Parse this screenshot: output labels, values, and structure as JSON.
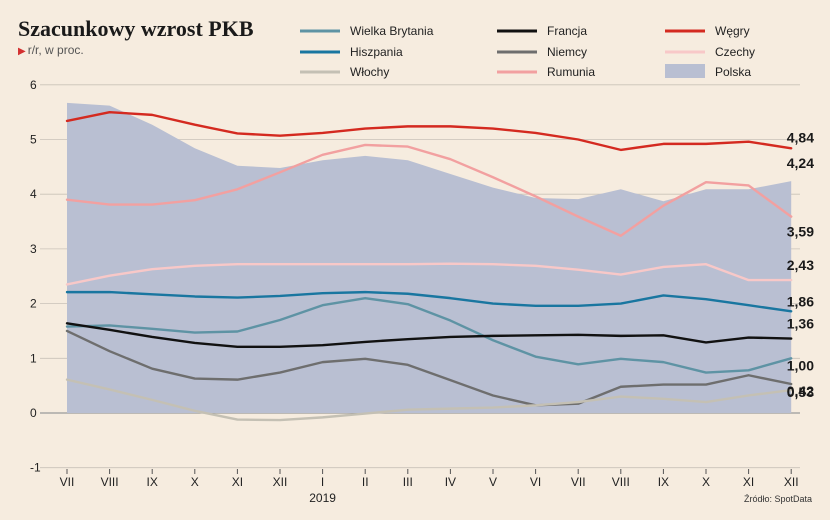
{
  "title": "Szacunkowy wzrost PKB",
  "subtitle": "r/r, w proc.",
  "source": "Źródło: SpotData",
  "chart_data": {
    "type": "line",
    "categories": [
      "VII",
      "VIII",
      "IX",
      "X",
      "XI",
      "XII",
      "I",
      "II",
      "III",
      "IV",
      "V",
      "VI",
      "VII",
      "VIII",
      "IX",
      "X",
      "XI",
      "XII"
    ],
    "year_label": "2019",
    "year_label_index": 6,
    "ylim": [
      -1,
      6
    ],
    "yticks": [
      -1,
      0,
      1,
      2,
      3,
      4,
      5,
      6
    ],
    "area_series": {
      "name": "Polska",
      "color": "#b9bfd2",
      "values": [
        5.67,
        5.62,
        5.27,
        4.84,
        4.52,
        4.48,
        4.62,
        4.7,
        4.62,
        4.37,
        4.12,
        3.93,
        3.91,
        4.09,
        3.87,
        4.09,
        4.09,
        4.24
      ]
    },
    "series": [
      {
        "name": "Węgry",
        "color": "#d42a20",
        "values": [
          5.34,
          5.5,
          5.45,
          5.27,
          5.11,
          5.07,
          5.12,
          5.2,
          5.24,
          5.24,
          5.2,
          5.12,
          5.0,
          4.81,
          4.92,
          4.92,
          4.96,
          4.84
        ]
      },
      {
        "name": "Rumunia",
        "color": "#f2a0a0",
        "values": [
          3.9,
          3.81,
          3.81,
          3.89,
          4.09,
          4.4,
          4.72,
          4.9,
          4.87,
          4.64,
          4.31,
          3.96,
          3.59,
          3.24,
          3.79,
          4.22,
          4.16,
          3.59
        ]
      },
      {
        "name": "Czechy",
        "color": "#f8c8c8",
        "values": [
          2.35,
          2.51,
          2.63,
          2.69,
          2.72,
          2.72,
          2.72,
          2.72,
          2.72,
          2.73,
          2.72,
          2.69,
          2.62,
          2.53,
          2.67,
          2.72,
          2.43,
          2.43
        ]
      },
      {
        "name": "Hiszpania",
        "color": "#1976a0",
        "values": [
          2.21,
          2.21,
          2.17,
          2.13,
          2.11,
          2.14,
          2.19,
          2.21,
          2.18,
          2.1,
          2.0,
          1.96,
          1.96,
          2.0,
          2.15,
          2.08,
          1.97,
          1.86
        ]
      },
      {
        "name": "Wielka Brytania",
        "color": "#5e93a4",
        "values": [
          1.58,
          1.6,
          1.54,
          1.47,
          1.49,
          1.7,
          1.97,
          2.1,
          1.99,
          1.69,
          1.33,
          1.03,
          0.89,
          0.99,
          0.93,
          0.74,
          0.78,
          1.0
        ]
      },
      {
        "name": "Francja",
        "color": "#111111",
        "values": [
          1.64,
          1.52,
          1.39,
          1.28,
          1.21,
          1.21,
          1.24,
          1.3,
          1.35,
          1.39,
          1.41,
          1.42,
          1.43,
          1.41,
          1.42,
          1.29,
          1.38,
          1.36
        ]
      },
      {
        "name": "Niemcy",
        "color": "#6e6e6e",
        "values": [
          1.5,
          1.13,
          0.81,
          0.63,
          0.61,
          0.74,
          0.93,
          0.99,
          0.88,
          0.6,
          0.32,
          0.14,
          0.17,
          0.48,
          0.52,
          0.52,
          0.69,
          0.53
        ]
      },
      {
        "name": "Włochy",
        "color": "#c4c0b4",
        "values": [
          0.61,
          0.43,
          0.24,
          0.04,
          -0.12,
          -0.13,
          -0.08,
          -0.01,
          0.06,
          0.08,
          0.1,
          0.14,
          0.2,
          0.3,
          0.26,
          0.2,
          0.32,
          0.42
        ]
      }
    ],
    "end_labels": [
      "4,84",
      "4,24",
      "3,59",
      "2,43",
      "1,86",
      "1,36",
      "1,00",
      "0,53",
      "0,42"
    ],
    "legend": [
      {
        "name": "Wielka Brytania",
        "color": "#5e93a4",
        "kind": "line"
      },
      {
        "name": "Hiszpania",
        "color": "#1976a0",
        "kind": "line"
      },
      {
        "name": "Włochy",
        "color": "#c4c0b4",
        "kind": "line"
      },
      {
        "name": "Francja",
        "color": "#111111",
        "kind": "line"
      },
      {
        "name": "Niemcy",
        "color": "#6e6e6e",
        "kind": "line"
      },
      {
        "name": "Rumunia",
        "color": "#f2a0a0",
        "kind": "line"
      },
      {
        "name": "Węgry",
        "color": "#d42a20",
        "kind": "line"
      },
      {
        "name": "Czechy",
        "color": "#f8c8c8",
        "kind": "line"
      },
      {
        "name": "Polska",
        "color": "#b9bfd2",
        "kind": "area"
      }
    ],
    "legend_placement": "top",
    "grid": "horizontal"
  }
}
